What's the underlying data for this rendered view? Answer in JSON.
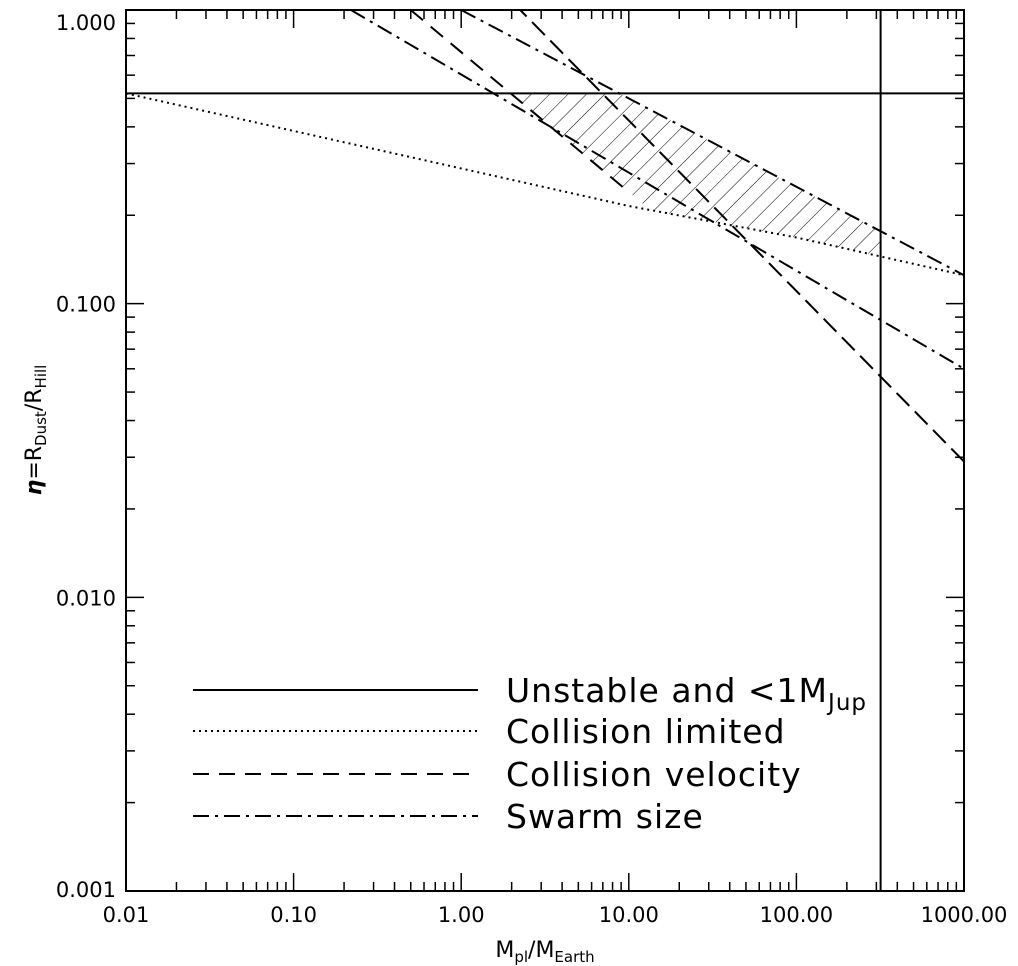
{
  "chart_data": {
    "type": "line",
    "title": "",
    "x_scale": "log",
    "y_scale": "log",
    "xlim": [
      0.01,
      1000
    ],
    "ylim": [
      0.001,
      1
    ],
    "grid": false,
    "legend_position": "bottom-center",
    "x_ticks": [
      0.01,
      0.1,
      1,
      10,
      100,
      1000
    ],
    "x_tick_labels": [
      "0.01",
      "0.10",
      "1.00",
      "10.00",
      "100.00",
      "1000.00"
    ],
    "y_ticks": [
      0.001,
      0.01,
      0.1,
      1
    ],
    "y_tick_labels": [
      "0.001",
      "0.010",
      "0.100",
      "1.000"
    ],
    "xlabel": {
      "base": "M",
      "sub1": "pl",
      "slash": "/",
      "base2": "M",
      "sub2": "Earth"
    },
    "ylabel": {
      "eta": "η",
      "eq": "=",
      "base": "R",
      "sub1": "Dust",
      "slash": "/",
      "base2": "R",
      "sub2": "Hill"
    },
    "series": [
      {
        "name": "Unstable and <1M_Jup",
        "label_main": "Unstable and <1M",
        "label_sub": "Jup",
        "style": "solid",
        "x": [
          0.01,
          1000
        ],
        "y": [
          0.52,
          0.52
        ]
      },
      {
        "name": "Unstable and <1M_Jup (vertical)",
        "style": "solid",
        "x": [
          318,
          318
        ],
        "y": [
          0.001,
          1
        ]
      },
      {
        "name": "Collision limited",
        "label_main": "Collision limited",
        "style": "dotted",
        "x": [
          0.01,
          10,
          100,
          1000
        ],
        "y": [
          0.52,
          0.215,
          0.168,
          0.125
        ]
      },
      {
        "name": "Collision velocity",
        "label_main": "Collision velocity",
        "style": "dashed",
        "x": [
          1000,
          2.25,
          1000
        ],
        "y": [
          0.029,
          1,
          0.029
        ]
      },
      {
        "name": "Collision velocity (upper)",
        "style": "dashed",
        "x": [
          0.5,
          10
        ],
        "y": [
          1,
          0.24
        ]
      },
      {
        "name": "Swarm size",
        "label_main": "Swarm size",
        "style": "dashdot",
        "x": [
          0.22,
          1000
        ],
        "y": [
          1,
          0.06
        ]
      },
      {
        "name": "Swarm size (upper)",
        "style": "dashdot",
        "x": [
          1.0,
          1000
        ],
        "y": [
          1,
          0.125
        ]
      }
    ],
    "shaded_region": {
      "style": "hatched",
      "x_range": [
        2,
        318
      ],
      "upper_boundary": "min(0.52, Swarm size upper)",
      "lower_boundary": "max(Collision velocity upper, Collision limited)"
    }
  }
}
